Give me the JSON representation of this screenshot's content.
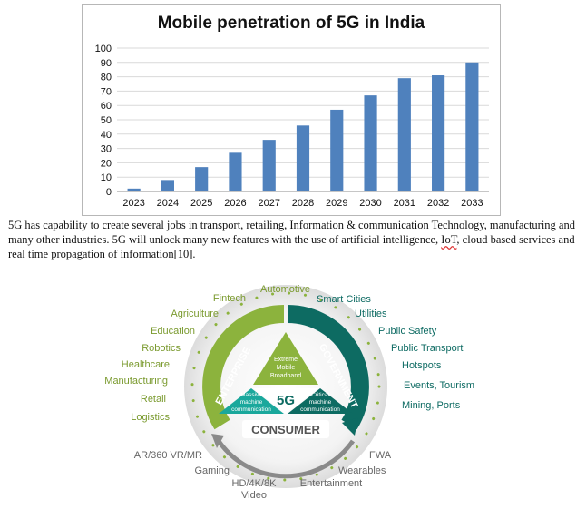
{
  "chart_data": {
    "type": "bar",
    "title": "Mobile penetration of 5G in India",
    "categories": [
      "2023",
      "2024",
      "2025",
      "2026",
      "2027",
      "2028",
      "2029",
      "2030",
      "2031",
      "2032",
      "2033"
    ],
    "values": [
      2,
      8,
      17,
      27,
      36,
      46,
      57,
      67,
      79,
      81,
      90
    ],
    "ylim": [
      0,
      100
    ],
    "yticks": [
      0,
      10,
      20,
      30,
      40,
      50,
      60,
      70,
      80,
      90,
      100
    ],
    "grid": true,
    "bar_color": "#4f81bd"
  },
  "paragraph": {
    "part1": "5G has capability to create several jobs in transport, retailing, Information & communication Technology, manufacturing and many other industries. 5G will unlock many new features with the use of artificial intelligence, ",
    "iot": "IoT",
    "part2": ", cloud based services and real time propagation of information[10]."
  },
  "diagram": {
    "center": "5G",
    "segments": {
      "top": [
        "Extreme",
        "Mobile",
        "Broadband"
      ],
      "left": [
        "Massive",
        "machine",
        "communication"
      ],
      "right": [
        "Critical",
        "machine",
        "communication"
      ]
    },
    "arcs": {
      "enterprise": "ENTERPRISE",
      "government": "GOVERNMENT",
      "consumer": "CONSUMER"
    },
    "enterprise_items": [
      "Fintech",
      "Agriculture",
      "Education",
      "Robotics",
      "Healthcare",
      "Manufacturing",
      "Retail",
      "Logistics"
    ],
    "government_items": [
      "Automotive",
      "Smart Cities",
      "Utilities",
      "Public Safety",
      "Public Transport",
      "Hotspots",
      "Events, Tourism",
      "Mining, Ports"
    ],
    "consumer_items": [
      "AR/360 VR/MR",
      "Gaming",
      "HD/4K/8K",
      "Video",
      "Entertainment",
      "Wearables",
      "FWA"
    ],
    "colors": {
      "green": "#8cb33d",
      "teal": "#1aa89c",
      "darkteal": "#0d6b62",
      "grey": "#777777",
      "label_green": "#7a9a2e",
      "label_teal": "#0e6b63"
    }
  }
}
